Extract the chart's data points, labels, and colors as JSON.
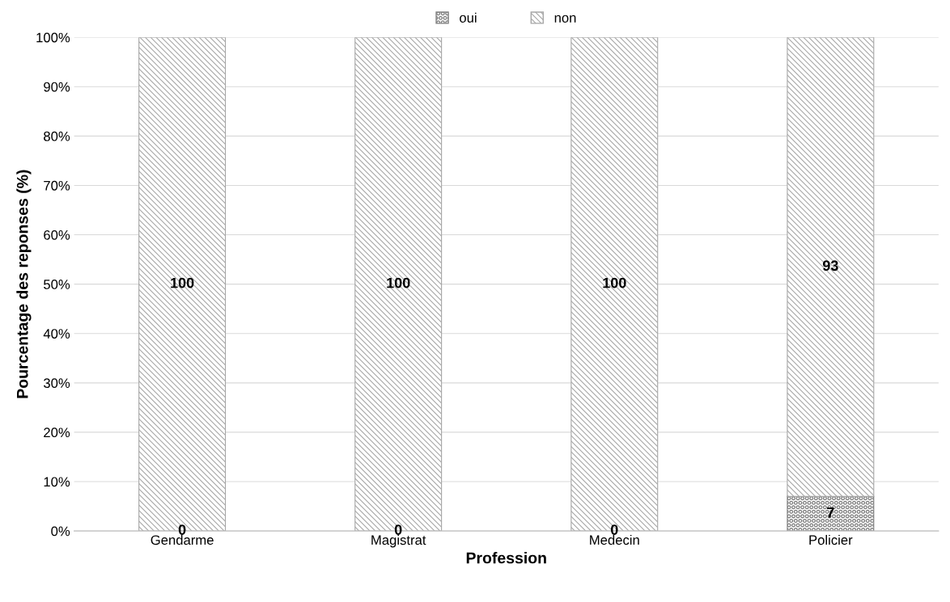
{
  "chart_data": {
    "type": "bar",
    "stacked": true,
    "xlabel": "Profession",
    "ylabel": "Pourcentage des reponses (%)",
    "categories": [
      "Gendarme",
      "Magistrat",
      "Medecin",
      "Policier"
    ],
    "series": [
      {
        "name": "oui",
        "color": "#808080",
        "values": [
          0,
          0,
          0,
          7
        ]
      },
      {
        "name": "non",
        "color": "#a6a6a6",
        "values": [
          100,
          100,
          100,
          93
        ]
      }
    ],
    "ylim": [
      0,
      100
    ],
    "yticks": [
      {
        "value": 0,
        "label": "0%"
      },
      {
        "value": 10,
        "label": "10%"
      },
      {
        "value": 20,
        "label": "20%"
      },
      {
        "value": 30,
        "label": "30%"
      },
      {
        "value": 40,
        "label": "40%"
      },
      {
        "value": 50,
        "label": "50%"
      },
      {
        "value": 60,
        "label": "60%"
      },
      {
        "value": 70,
        "label": "70%"
      },
      {
        "value": 80,
        "label": "80%"
      },
      {
        "value": 90,
        "label": "90%"
      },
      {
        "value": 100,
        "label": "100%"
      }
    ],
    "grid": "y",
    "legend": "top",
    "data_labels": true
  }
}
